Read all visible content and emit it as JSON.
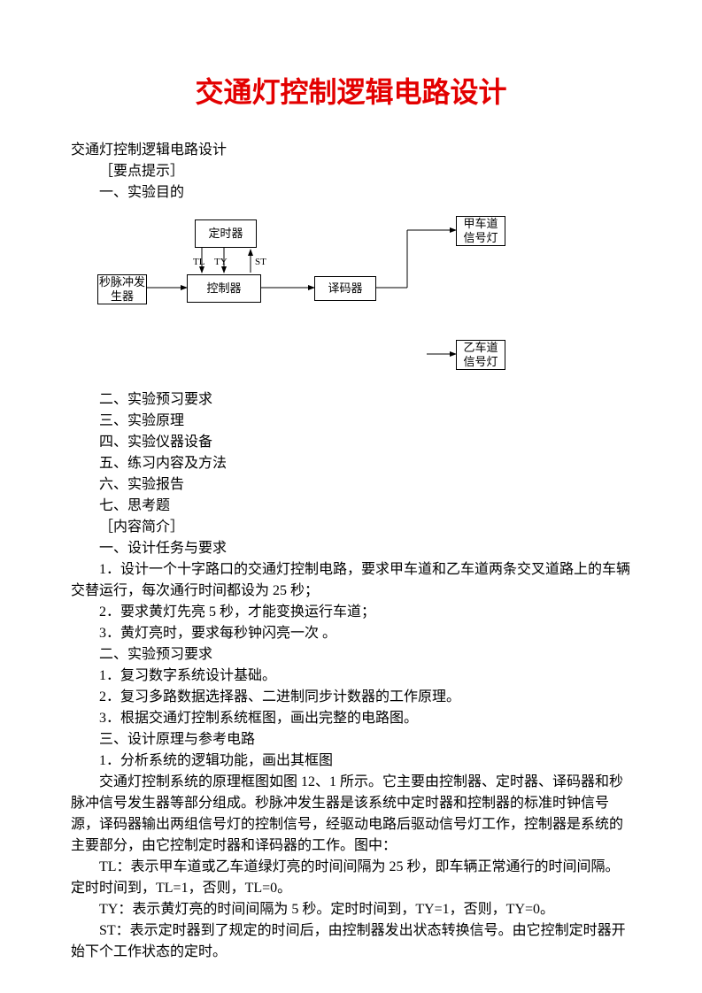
{
  "title": "交通灯控制逻辑电路设计",
  "subtitle": "交通灯控制逻辑电路设计",
  "top_sections": [
    "［要点提示］",
    "一、实验目的"
  ],
  "diagram": {
    "boxes": {
      "pulse": {
        "label": "秒脉冲发生器"
      },
      "timer": {
        "label": "定时器"
      },
      "controller": {
        "label": "控制器"
      },
      "decoder": {
        "label": "译码器"
      },
      "lightA": {
        "line1": "甲车道",
        "line2": "信号灯"
      },
      "lightB": {
        "line1": "乙车道",
        "line2": "信号灯"
      }
    },
    "signals": {
      "tl": "TL",
      "ty": "TY",
      "st": "ST"
    }
  },
  "body_lines": [
    "二、实验预习要求",
    "三、实验原理",
    "四、实验仪器设备",
    "五、练习内容及方法",
    "六、实验报告",
    "七、思考题",
    "［内容简介］",
    "一、设计任务与要求",
    "1．设计一个十字路口的交通灯控制电路，要求甲车道和乙车道两条交叉道路上的车辆交替运行，每次通行时间都设为 25 秒；",
    "2．要求黄灯先亮 5 秒，才能变换运行车道；",
    "3．黄灯亮时，要求每秒钟闪亮一次 。",
    "二、实验预习要求",
    "1．复习数字系统设计基础。",
    "2．复习多路数据选择器、二进制同步计数器的工作原理。",
    "3．根据交通灯控制系统框图，画出完整的电路图。",
    "三、设计原理与参考电路",
    "1．分析系统的逻辑功能，画出其框图",
    "交通灯控制系统的原理框图如图 12、1 所示。它主要由控制器、定时器、译码器和秒脉冲信号发生器等部分组成。秒脉冲发生器是该系统中定时器和控制器的标准时钟信号源，译码器输出两组信号灯的控制信号，经驱动电路后驱动信号灯工作，控制器是系统的主要部分，由它控制定时器和译码器的工作。图中：",
    "TL：表示甲车道或乙车道绿灯亮的时间间隔为 25 秒，即车辆正常通行的时间间隔。定时时间到，TL=1，否则，TL=0。",
    "TY：表示黄灯亮的时间间隔为 5 秒。定时时间到，TY=1，否则，TY=0。",
    "ST：表示定时器到了规定的时间后，由控制器发出状态转换信号。由它控制定时器开始下个工作状态的定时。"
  ],
  "body_wrap": {
    "8": "flow",
    "17": "flow",
    "18": "flow",
    "20": "flow"
  }
}
